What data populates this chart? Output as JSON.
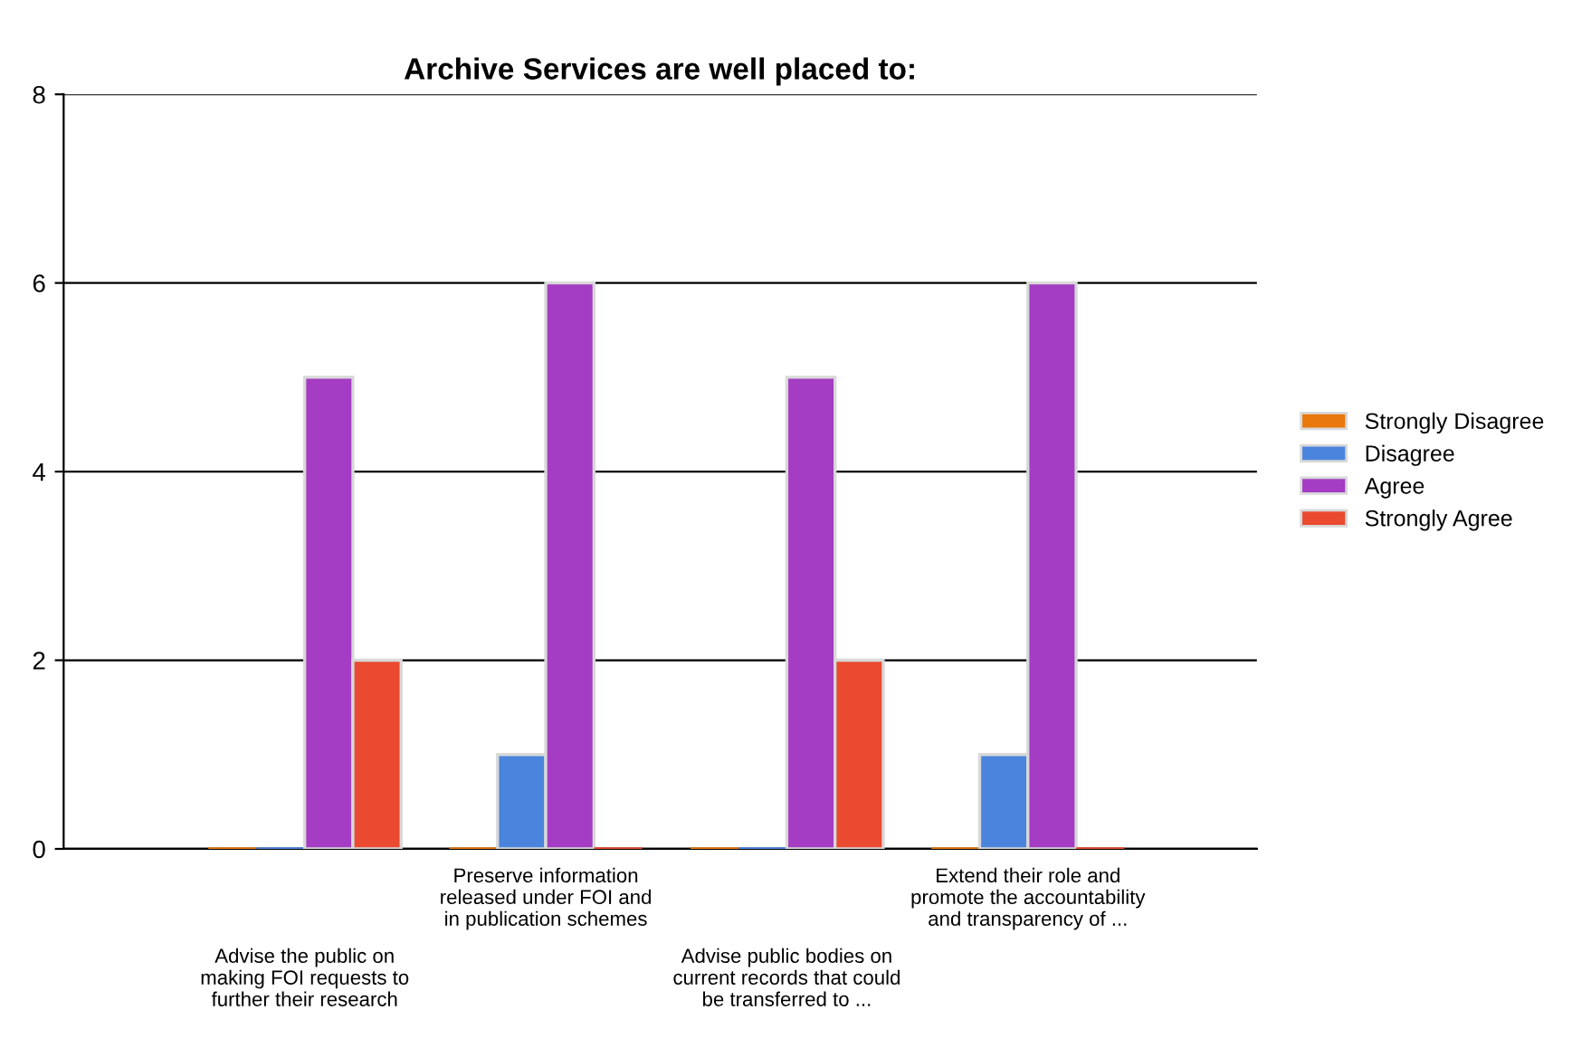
{
  "chart_data": {
    "type": "bar",
    "title": "Archive Services are well placed to:",
    "categories": [
      "Advise the public on\nmaking FOI requests to\nfurther their research",
      "Preserve information\nreleased under FOI and\nin publication schemes",
      "Advise public bodies on\ncurrent records that could\nbe transferred to ...",
      "Extend their role and\npromote the accountability\nand transparency of ..."
    ],
    "series": [
      {
        "name": "Strongly Disagree",
        "color": "#e8780c",
        "values": [
          0,
          0,
          0,
          0
        ]
      },
      {
        "name": "Disagree",
        "color": "#4a84dc",
        "values": [
          0,
          1,
          0,
          1
        ]
      },
      {
        "name": "Agree",
        "color": "#a43cc4",
        "values": [
          5,
          6,
          5,
          6
        ]
      },
      {
        "name": "Strongly Agree",
        "color": "#ea4a30",
        "values": [
          2,
          0,
          2,
          0
        ]
      }
    ],
    "ylim": [
      0,
      8
    ],
    "yticks": [
      0,
      2,
      4,
      6,
      8
    ],
    "grid": "y",
    "legend": "right"
  }
}
